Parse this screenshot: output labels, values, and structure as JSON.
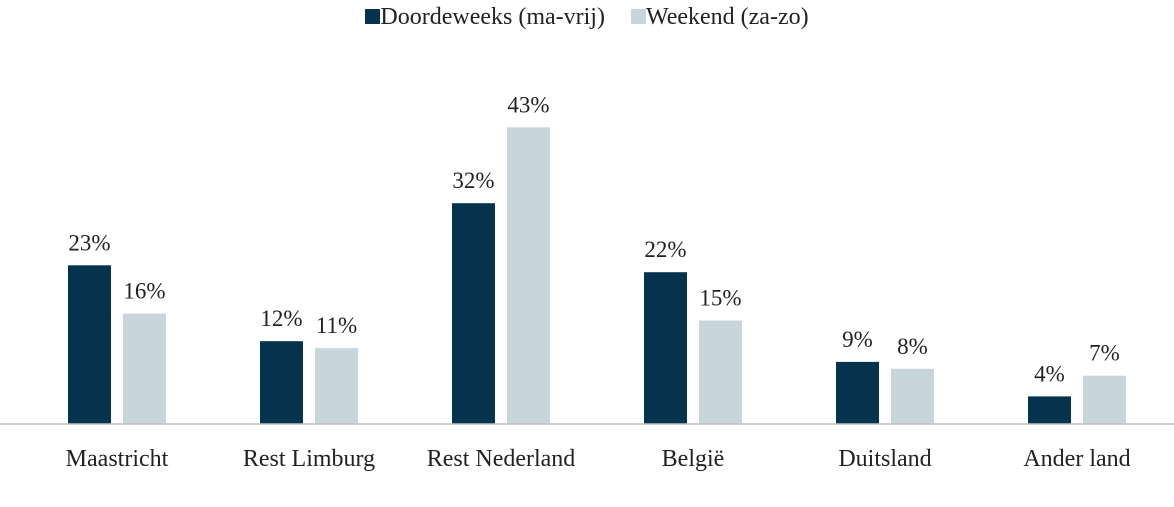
{
  "chart_data": {
    "type": "bar",
    "categories": [
      "Maastricht",
      "Rest Limburg",
      "Rest Nederland",
      "België",
      "Duitsland",
      "Ander land"
    ],
    "series": [
      {
        "name": "Doordeweeks (ma-vrij)",
        "color": "#05324c",
        "values": [
          23,
          12,
          32,
          22,
          9,
          4
        ],
        "value_labels": [
          "23%",
          "12%",
          "32%",
          "22%",
          "9%",
          "4%"
        ]
      },
      {
        "name": "Weekend (za-zo)",
        "color": "#c9d5dc",
        "values": [
          16,
          11,
          43,
          15,
          8,
          7
        ],
        "value_labels": [
          "16%",
          "11%",
          "43%",
          "15%",
          "8%",
          "7%"
        ]
      }
    ],
    "ylim": [
      0,
      50
    ],
    "legend": "top"
  }
}
